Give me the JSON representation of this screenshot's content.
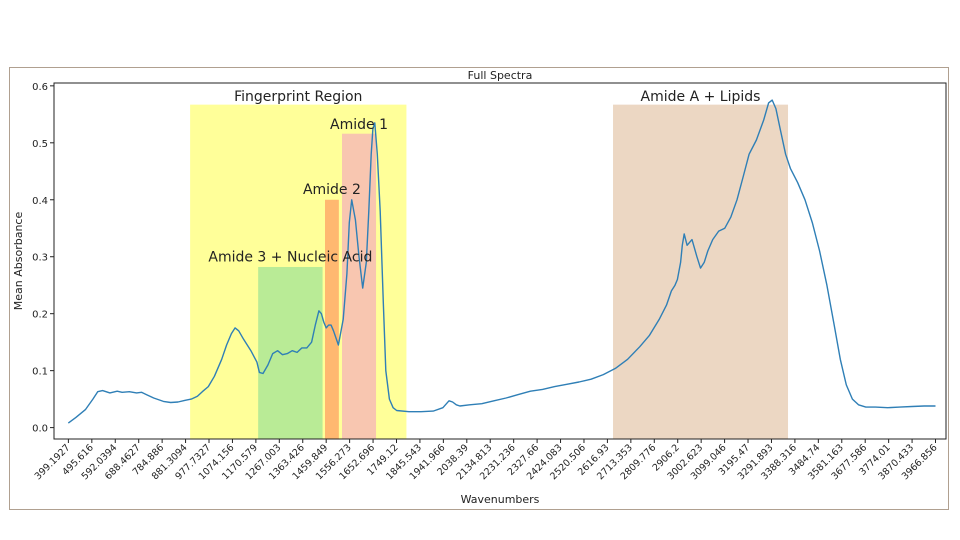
{
  "chart_data": {
    "type": "line",
    "title": "Full Spectra",
    "xlabel": "Wavenumbers",
    "ylabel": "Mean Absorbance",
    "ylim": [
      -0.02,
      0.605
    ],
    "yticks": [
      0.0,
      0.1,
      0.2,
      0.3,
      0.4,
      0.5,
      0.6
    ],
    "ytick_labels": [
      "0.0",
      "0.1",
      "0.2",
      "0.3",
      "0.4",
      "0.5",
      "0.6"
    ],
    "xlim": [
      340,
      4010
    ],
    "x_tick_labels": [
      "399.1927",
      "495.616",
      "592.0394",
      "688.4627",
      "784.886",
      "881.3094",
      "977.7327",
      "1074.156",
      "1170.579",
      "1267.003",
      "1363.426",
      "1459.849",
      "1556.273",
      "1652.696",
      "1749.12",
      "1845.543",
      "1941.966",
      "2038.39",
      "2134.813",
      "2231.236",
      "2327.66",
      "2424.083",
      "2520.506",
      "2616.93",
      "2713.353",
      "2809.776",
      "2906.2",
      "3002.623",
      "3099.046",
      "3195.47",
      "3291.893",
      "3388.316",
      "3484.74",
      "3581.163",
      "3677.586",
      "3774.01",
      "3870.433",
      "3966.856"
    ],
    "grid": false,
    "series": [
      {
        "color": "#2f7fb6",
        "x": [
          399,
          430,
          470,
          500,
          520,
          540,
          570,
          600,
          620,
          650,
          680,
          700,
          720,
          750,
          790,
          820,
          850,
          880,
          905,
          930,
          950,
          975,
          1000,
          1030,
          1050,
          1070,
          1085,
          1100,
          1120,
          1150,
          1175,
          1185,
          1200,
          1220,
          1240,
          1260,
          1280,
          1300,
          1320,
          1340,
          1360,
          1380,
          1400,
          1415,
          1430,
          1440,
          1450,
          1460,
          1470,
          1480,
          1490,
          1510,
          1530,
          1545,
          1555,
          1565,
          1580,
          1595,
          1610,
          1625,
          1635,
          1645,
          1652,
          1660,
          1670,
          1682,
          1695,
          1705,
          1720,
          1735,
          1750,
          1800,
          1850,
          1900,
          1940,
          1965,
          1980,
          1995,
          2010,
          2050,
          2100,
          2150,
          2200,
          2250,
          2300,
          2350,
          2400,
          2450,
          2500,
          2550,
          2600,
          2650,
          2700,
          2750,
          2790,
          2830,
          2860,
          2880,
          2895,
          2905,
          2918,
          2925,
          2933,
          2945,
          2965,
          2985,
          3000,
          3015,
          3030,
          3050,
          3075,
          3100,
          3125,
          3150,
          3175,
          3200,
          3230,
          3260,
          3280,
          3295,
          3310,
          3330,
          3350,
          3370,
          3400,
          3430,
          3460,
          3490,
          3520,
          3550,
          3575,
          3600,
          3625,
          3650,
          3680,
          3720,
          3770,
          3820,
          3870,
          3920,
          3967
        ],
        "y": [
          0.008,
          0.018,
          0.032,
          0.05,
          0.063,
          0.065,
          0.061,
          0.064,
          0.062,
          0.063,
          0.061,
          0.062,
          0.058,
          0.052,
          0.046,
          0.044,
          0.045,
          0.048,
          0.05,
          0.055,
          0.063,
          0.072,
          0.09,
          0.12,
          0.145,
          0.165,
          0.175,
          0.17,
          0.155,
          0.135,
          0.115,
          0.097,
          0.095,
          0.11,
          0.13,
          0.135,
          0.128,
          0.13,
          0.135,
          0.132,
          0.14,
          0.14,
          0.15,
          0.18,
          0.205,
          0.2,
          0.185,
          0.175,
          0.18,
          0.18,
          0.17,
          0.145,
          0.19,
          0.27,
          0.36,
          0.4,
          0.365,
          0.3,
          0.245,
          0.29,
          0.38,
          0.48,
          0.525,
          0.535,
          0.48,
          0.38,
          0.22,
          0.1,
          0.05,
          0.035,
          0.03,
          0.028,
          0.028,
          0.029,
          0.035,
          0.047,
          0.045,
          0.04,
          0.038,
          0.04,
          0.042,
          0.047,
          0.052,
          0.058,
          0.064,
          0.067,
          0.072,
          0.076,
          0.08,
          0.085,
          0.093,
          0.104,
          0.12,
          0.142,
          0.162,
          0.19,
          0.215,
          0.24,
          0.25,
          0.26,
          0.29,
          0.32,
          0.34,
          0.32,
          0.33,
          0.3,
          0.28,
          0.29,
          0.31,
          0.33,
          0.345,
          0.35,
          0.37,
          0.4,
          0.44,
          0.48,
          0.505,
          0.54,
          0.57,
          0.575,
          0.56,
          0.52,
          0.48,
          0.455,
          0.43,
          0.4,
          0.36,
          0.31,
          0.25,
          0.18,
          0.12,
          0.075,
          0.05,
          0.04,
          0.036,
          0.036,
          0.035,
          0.036,
          0.037,
          0.038,
          0.038
        ]
      }
    ],
    "regions": [
      {
        "label": "Fingerprint Region",
        "x0": 900,
        "x1": 1790,
        "y0": 0.567,
        "color": "#ffff99",
        "label_y": 0.573
      },
      {
        "label": "Amide 3 + Nucleic Acid",
        "x0": 1180,
        "x1": 1445,
        "y0": 0.282,
        "color": "#b9eb96",
        "label_y": 0.292
      },
      {
        "label": "Amide 2",
        "x0": 1455,
        "x1": 1512,
        "y0": 0.4,
        "color": "#ffb870",
        "label_y": 0.41
      },
      {
        "label": "Amide 1",
        "x0": 1525,
        "x1": 1665,
        "y0": 0.516,
        "color": "#f8c6b0",
        "label_y": 0.524
      },
      {
        "label": "Amide A + Lipids",
        "x0": 2640,
        "x1": 3360,
        "y0": 0.567,
        "color": "#ecd7c3",
        "label_y": 0.573
      }
    ]
  }
}
